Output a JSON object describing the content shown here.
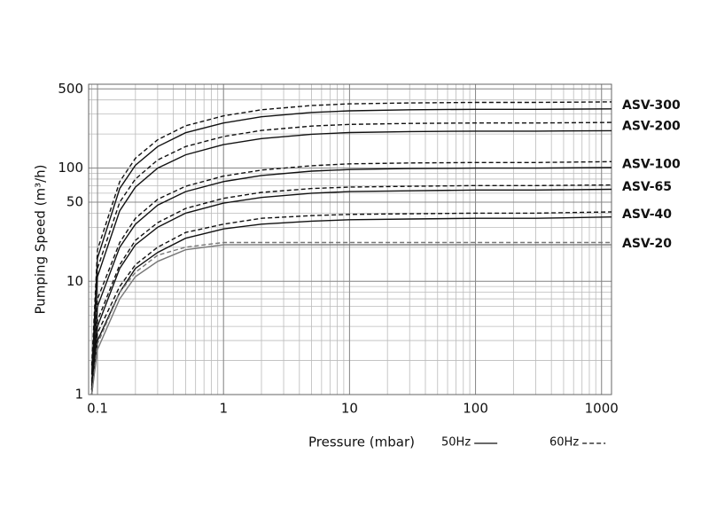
{
  "chart_data": {
    "type": "line",
    "xlabel": "Pressure (mbar)",
    "ylabel": "Pumping Speed (m³/h)",
    "log_x": true,
    "log_y": true,
    "grid": true,
    "minor_grid": true,
    "xlim": [
      0.085,
      1200
    ],
    "ylim": [
      1,
      550
    ],
    "xticks": [
      0.1,
      1,
      10,
      100,
      1000
    ],
    "yticks": [
      1,
      10,
      50,
      100,
      500
    ],
    "legend": [
      {
        "label": "50Hz",
        "style": "solid"
      },
      {
        "label": "60Hz",
        "style": "dashed"
      }
    ],
    "x": [
      0.09,
      0.1,
      0.15,
      0.2,
      0.3,
      0.5,
      1,
      2,
      5,
      10,
      30,
      100,
      300,
      1200
    ],
    "series": [
      {
        "name": "ASV-300",
        "color": "#111111",
        "curves": [
          [
            1.5,
            16,
            66,
            106,
            155,
            205,
            250,
            284,
            310,
            320,
            327,
            330,
            330,
            333
          ],
          [
            1.8,
            19,
            76,
            122,
            178,
            236,
            289,
            327,
            357,
            369,
            376,
            380,
            380,
            384
          ]
        ]
      },
      {
        "name": "ASV-200",
        "color": "#111111",
        "curves": [
          [
            1.2,
            11,
            42,
            68,
            100,
            131,
            161,
            182,
            199,
            206,
            210,
            212,
            212,
            214
          ],
          [
            1.3,
            13,
            50,
            80,
            118,
            155,
            190,
            215,
            235,
            243,
            248,
            250,
            250,
            253
          ]
        ]
      },
      {
        "name": "ASV-100",
        "color": "#111111",
        "curves": [
          [
            1.1,
            6,
            20,
            32,
            47,
            62,
            76,
            86,
            94,
            97,
            99,
            100,
            100,
            101
          ],
          [
            1.1,
            7,
            22,
            36,
            53,
            69,
            85,
            96,
            105,
            109,
            111,
            112,
            112,
            114
          ]
        ]
      },
      {
        "name": "ASV-65",
        "color": "#111111",
        "curves": [
          [
            1,
            4,
            13,
            21,
            30,
            40,
            49,
            55,
            60,
            62,
            63,
            64,
            64,
            65
          ],
          [
            1,
            4.5,
            14,
            23,
            33,
            44,
            54,
            61,
            66,
            68,
            69,
            70,
            70,
            71
          ]
        ]
      },
      {
        "name": "ASV-40",
        "color": "#111111",
        "curves": [
          [
            1,
            3,
            8,
            13,
            18,
            24,
            29,
            32,
            34,
            35,
            35.5,
            36,
            36,
            37
          ],
          [
            1,
            3.5,
            9,
            14,
            20,
            27,
            32,
            36,
            38,
            39,
            39.5,
            40,
            40,
            41
          ]
        ]
      },
      {
        "name": "ASV-20",
        "color": "#777777",
        "curves": [
          [
            1,
            2.5,
            7,
            11,
            15,
            19,
            21,
            21,
            21,
            21,
            21,
            21,
            21,
            21
          ],
          [
            1,
            2.8,
            8,
            12,
            17,
            20,
            22,
            22,
            22,
            22,
            22,
            22,
            22,
            22
          ]
        ]
      }
    ]
  }
}
